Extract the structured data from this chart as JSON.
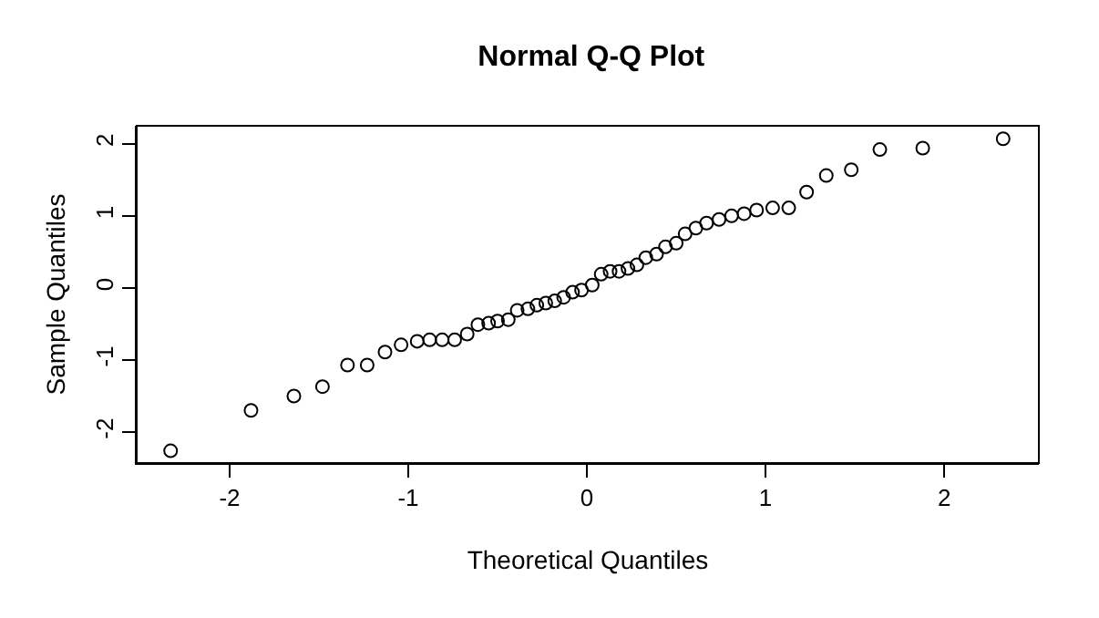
{
  "chart_data": {
    "type": "scatter",
    "title": "Normal Q-Q Plot",
    "xlabel": "Theoretical Quantiles",
    "ylabel": "Sample Quantiles",
    "x": [
      -2.33,
      -1.88,
      -1.64,
      -1.48,
      -1.34,
      -1.23,
      -1.13,
      -1.04,
      -0.95,
      -0.88,
      -0.81,
      -0.74,
      -0.67,
      -0.61,
      -0.55,
      -0.5,
      -0.44,
      -0.39,
      -0.33,
      -0.28,
      -0.23,
      -0.18,
      -0.13,
      -0.08,
      -0.03,
      0.03,
      0.08,
      0.13,
      0.18,
      0.23,
      0.28,
      0.33,
      0.39,
      0.44,
      0.5,
      0.55,
      0.61,
      0.67,
      0.74,
      0.81,
      0.88,
      0.95,
      1.04,
      1.13,
      1.23,
      1.34,
      1.48,
      1.64,
      1.88,
      2.33
    ],
    "series": [
      {
        "color": "#000000",
        "values": [
          -2.26,
          -1.7,
          -1.5,
          -1.37,
          -1.07,
          -1.07,
          -0.89,
          -0.79,
          -0.74,
          -0.72,
          -0.72,
          -0.72,
          -0.64,
          -0.51,
          -0.49,
          -0.46,
          -0.44,
          -0.31,
          -0.29,
          -0.24,
          -0.21,
          -0.18,
          -0.13,
          -0.06,
          -0.03,
          0.04,
          0.19,
          0.23,
          0.23,
          0.27,
          0.32,
          0.42,
          0.47,
          0.57,
          0.62,
          0.75,
          0.83,
          0.9,
          0.95,
          1.0,
          1.03,
          1.08,
          1.11,
          1.11,
          1.33,
          1.56,
          1.64,
          1.92,
          1.94,
          2.07
        ]
      }
    ],
    "marker": "circle",
    "xlim": [
      -2.52,
      2.53
    ],
    "ylim": [
      -2.43,
      2.25
    ],
    "xticks": [
      -2,
      -1,
      0,
      1,
      2
    ],
    "yticks": [
      -2,
      -1,
      0,
      1,
      2
    ]
  }
}
